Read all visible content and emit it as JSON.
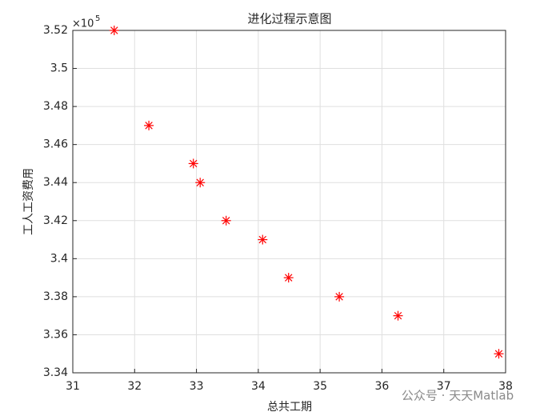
{
  "chart_data": {
    "type": "scatter",
    "title": "进化过程示意图",
    "x_label": "总共工期",
    "y_label": "工人工资费用",
    "y_multiplier": "×10",
    "y_multiplier_exponent": "5",
    "x": [
      31.67,
      32.23,
      32.95,
      33.06,
      33.48,
      34.07,
      34.49,
      35.31,
      36.26,
      37.89
    ],
    "values": [
      3.52,
      3.47,
      3.45,
      3.44,
      3.42,
      3.41,
      3.39,
      3.38,
      3.37,
      3.35
    ],
    "color": "#ff0000",
    "marker": "asterisk",
    "xlim": [
      31,
      38
    ],
    "xticks": [
      31,
      32,
      33,
      34,
      35,
      36,
      37,
      38
    ],
    "ylim": [
      3.34,
      3.52
    ],
    "yticks": [
      3.34,
      3.36,
      3.38,
      3.4,
      3.42,
      3.44,
      3.46,
      3.48,
      3.5,
      3.52
    ],
    "grid": true,
    "watermark": "公众号 · 天天Matlab"
  }
}
